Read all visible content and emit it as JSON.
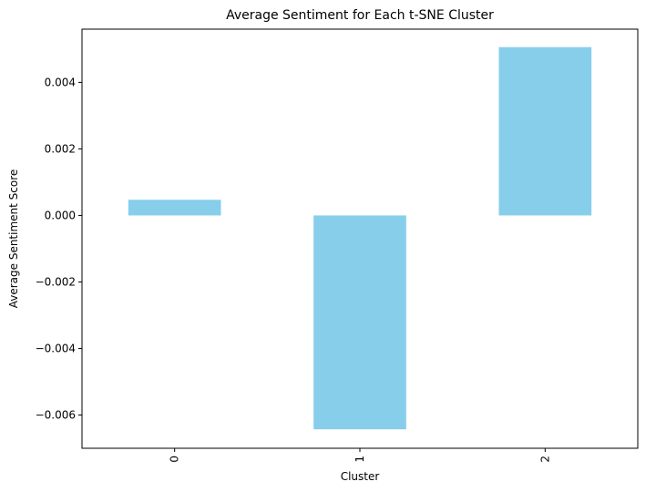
{
  "chart_data": {
    "type": "bar",
    "title": "Average Sentiment for Each t-SNE Cluster",
    "xlabel": "Cluster",
    "ylabel": "Average Sentiment Score",
    "categories": [
      "0",
      "1",
      "2"
    ],
    "values": [
      0.00047,
      -0.00643,
      0.00506
    ],
    "ylim": [
      -0.007,
      0.0056
    ],
    "yticks": [
      -0.006,
      -0.004,
      -0.002,
      0.0,
      0.002,
      0.004
    ],
    "ytick_labels": [
      "−0.006",
      "−0.004",
      "−0.002",
      "0.000",
      "0.002",
      "0.004"
    ],
    "x_tick_rotation": 90,
    "grid": false,
    "legend": "none",
    "bar_color": "#87CEEB"
  }
}
